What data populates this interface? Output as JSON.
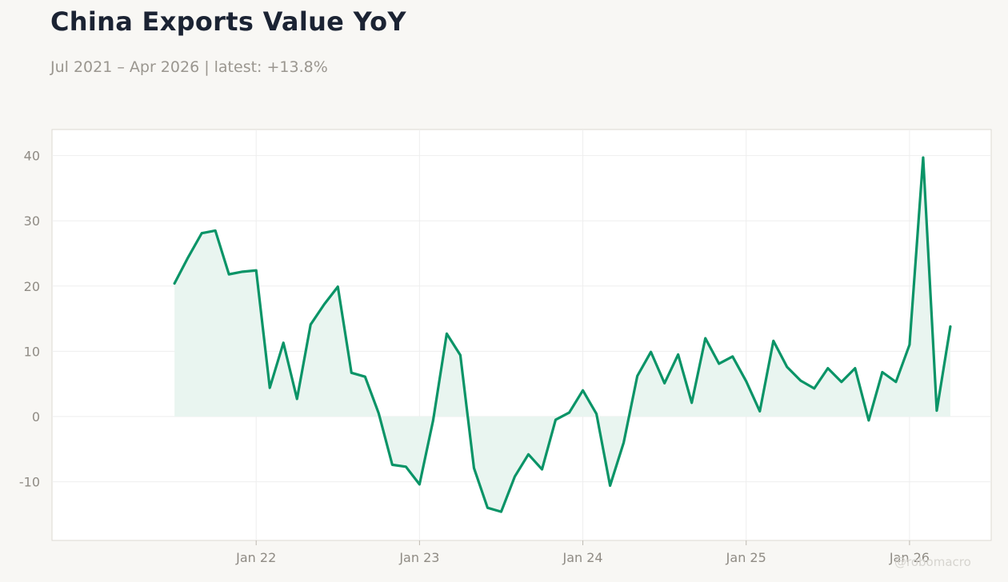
{
  "title": "China Exports Value YoY",
  "subtitle": "Jul 2021 – Apr 2026 | latest: +13.8%",
  "watermark": "@robomacro",
  "colors": {
    "line": "#0a9467",
    "fill": "#e8f4ef",
    "background": "#f8f7f4",
    "plot_background": "#ffffff",
    "grid": "#eeeeee"
  },
  "chart_data": {
    "type": "area",
    "title": "China Exports Value YoY",
    "subtitle": "Jul 2021 – Apr 2026 | latest: +13.8%",
    "xlabel": "",
    "ylabel": "",
    "x_start": "2021-07",
    "x_end": "2026-04",
    "xlim": [
      "2020-10",
      "2026-07"
    ],
    "ylim": [
      -19,
      44
    ],
    "grid": true,
    "legend": "none",
    "x_ticks": [
      {
        "date": "2022-01",
        "label": "Jan 22"
      },
      {
        "date": "2023-01",
        "label": "Jan 23"
      },
      {
        "date": "2024-01",
        "label": "Jan 24"
      },
      {
        "date": "2025-01",
        "label": "Jan 25"
      },
      {
        "date": "2026-01",
        "label": "Jan 26"
      }
    ],
    "y_ticks": [
      -10,
      0,
      10,
      20,
      30,
      40
    ],
    "x": [
      "2021-07",
      "2021-08",
      "2021-09",
      "2021-10",
      "2021-11",
      "2021-12",
      "2022-01",
      "2022-02",
      "2022-03",
      "2022-04",
      "2022-05",
      "2022-06",
      "2022-07",
      "2022-08",
      "2022-09",
      "2022-10",
      "2022-11",
      "2022-12",
      "2023-01",
      "2023-02",
      "2023-03",
      "2023-04",
      "2023-05",
      "2023-06",
      "2023-07",
      "2023-08",
      "2023-09",
      "2023-10",
      "2023-11",
      "2023-12",
      "2024-01",
      "2024-02",
      "2024-03",
      "2024-04",
      "2024-05",
      "2024-06",
      "2024-07",
      "2024-08",
      "2024-09",
      "2024-10",
      "2024-11",
      "2024-12",
      "2025-01",
      "2025-02",
      "2025-03",
      "2025-04",
      "2025-05",
      "2025-06",
      "2025-07",
      "2025-08",
      "2025-09",
      "2025-10",
      "2025-11",
      "2025-12",
      "2026-01",
      "2026-02",
      "2026-03",
      "2026-04"
    ],
    "values": [
      20.4,
      24.4,
      28.1,
      28.5,
      21.8,
      22.2,
      22.4,
      4.4,
      11.3,
      2.7,
      14.1,
      17.2,
      19.9,
      6.7,
      6.1,
      0.5,
      -7.4,
      -7.7,
      -10.4,
      -0.6,
      12.7,
      9.4,
      -7.9,
      -14.0,
      -14.6,
      -9.2,
      -5.8,
      -8.1,
      -0.5,
      0.6,
      4.0,
      0.4,
      -10.6,
      -4.0,
      6.2,
      9.9,
      5.1,
      9.5,
      2.1,
      12.0,
      8.1,
      9.2,
      5.4,
      0.8,
      11.6,
      7.6,
      5.5,
      4.3,
      7.4,
      5.3,
      7.4,
      -0.6,
      6.8,
      5.3,
      11.0,
      39.7,
      0.9,
      13.8
    ]
  }
}
